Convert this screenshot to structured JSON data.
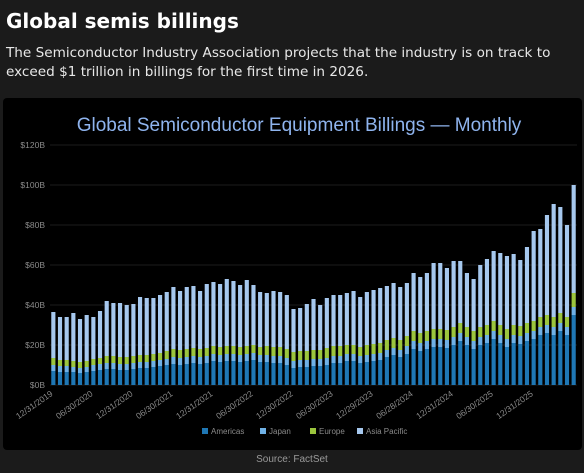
{
  "page": {
    "headline": "Global semis billings",
    "subtitle": "The Semiconductor Industry Association projects that the industry is on track to exceed $1 trillion in billings for the first time in 2026.",
    "source": "Source: FactSet"
  },
  "colors": {
    "background": "#1b1b1b",
    "panel": "#000000",
    "Americas": "#1f77b4",
    "Japan": "#6fb1e6",
    "Europe": "#9bc53d",
    "Asia Pacific": "#a6c8ee",
    "title": "#8fb4ee",
    "grid": "#3a3a3a",
    "axis_text": "#8a8a8a"
  },
  "chart_data": {
    "type": "bar",
    "stacked": true,
    "title": "Global Semiconductor Equipment Billings — Monthly",
    "xlabel": "",
    "ylabel": "",
    "ylim": [
      0,
      120
    ],
    "yticks": [
      0,
      20,
      40,
      60,
      80,
      100,
      120
    ],
    "ytick_labels": [
      "$0B",
      "$20B",
      "$40B",
      "$60B",
      "$80B",
      "$100B",
      "$120B"
    ],
    "xtick_labels": [
      "12/31/2019",
      "06/30/2020",
      "12/31/2020",
      "06/30/2021",
      "12/31/2021",
      "06/30/2022",
      "12/30/2022",
      "06/30/2023",
      "12/29/2023",
      "06/28/2024",
      "12/31/2024",
      "06/30/2025",
      "12/31/2025"
    ],
    "xtick_bar_index": [
      0,
      6,
      12,
      18,
      24,
      30,
      36,
      42,
      48,
      54,
      60,
      66,
      72
    ],
    "grid": true,
    "legend_position": "bottom",
    "value_unit": "$B",
    "series": [
      {
        "name": "Americas",
        "values": [
          7,
          6.5,
          6.5,
          6.5,
          6,
          6.5,
          7,
          7.5,
          8,
          8,
          7.5,
          7.5,
          8,
          8.5,
          8.5,
          9,
          9.5,
          10,
          10.5,
          10,
          10.5,
          11,
          10.5,
          11,
          12,
          11.5,
          12,
          12,
          11.5,
          12,
          12.5,
          11.5,
          11.5,
          11,
          11,
          10,
          8.5,
          9,
          9,
          9.5,
          9.5,
          10,
          11,
          11,
          12,
          12,
          11,
          11.5,
          12,
          12.5,
          14,
          15,
          14,
          15.5,
          18,
          17,
          18,
          19,
          19,
          18.5,
          20,
          22,
          20,
          18,
          20,
          21,
          23,
          21,
          19,
          21,
          20.5,
          22,
          23,
          25,
          26,
          25,
          27,
          25,
          35
        ]
      },
      {
        "name": "Japan",
        "values": [
          3,
          3,
          3,
          2.5,
          2.5,
          2.5,
          3,
          3,
          3,
          3,
          3,
          3,
          3,
          3,
          3,
          3,
          3,
          3,
          3.5,
          3.5,
          3.5,
          3.5,
          3.5,
          3.5,
          3.5,
          3.5,
          3.5,
          3.5,
          3.5,
          3.5,
          3.5,
          3.5,
          3.5,
          3.5,
          3.5,
          3.5,
          3.5,
          3.5,
          3.5,
          3.5,
          3.5,
          3.5,
          3.5,
          3.5,
          3.5,
          3.5,
          3.5,
          3.5,
          3.5,
          3.5,
          3.5,
          3.5,
          3.5,
          4,
          4,
          4,
          4,
          4,
          4,
          4,
          4,
          4,
          4,
          4,
          4,
          4,
          4,
          4,
          4,
          4,
          4,
          4,
          4,
          4,
          4,
          4,
          4,
          4,
          4
        ]
      },
      {
        "name": "Europe",
        "values": [
          3.5,
          3,
          3,
          3,
          3,
          3,
          3,
          3,
          3.5,
          3.5,
          3.5,
          3.5,
          3.5,
          3.5,
          3.5,
          3.5,
          3.5,
          4,
          4,
          4,
          4,
          4,
          4,
          4,
          4,
          4,
          4,
          4,
          4,
          4,
          4,
          4,
          4.5,
          4.5,
          4.5,
          4.5,
          4.5,
          4.5,
          4.5,
          4.5,
          4.5,
          5,
          5,
          5,
          4.5,
          4.5,
          4.5,
          5,
          5,
          5,
          5,
          5,
          5,
          5,
          5,
          5,
          5,
          5,
          5,
          5,
          5,
          5,
          5,
          5,
          5,
          5,
          5,
          5,
          5,
          5,
          5,
          5,
          5,
          5,
          5,
          5,
          5,
          5,
          7
        ]
      },
      {
        "name": "Asia Pacific",
        "values": [
          23,
          21.5,
          21.5,
          24,
          21.5,
          23,
          21,
          23.5,
          27.5,
          26.5,
          27,
          26,
          26,
          29,
          28.5,
          28,
          29,
          29.5,
          31,
          29.5,
          31,
          31,
          29,
          32,
          32,
          31.5,
          33.5,
          32.5,
          31,
          33,
          30,
          27.5,
          26.5,
          28,
          27.5,
          27,
          21.5,
          21.5,
          23.5,
          25.5,
          22.5,
          25,
          25.5,
          25.5,
          26,
          27,
          25,
          26.5,
          27,
          27.5,
          27,
          27.5,
          26.5,
          26.5,
          29,
          28,
          29,
          33,
          33,
          31,
          33,
          31,
          27,
          26,
          31,
          33,
          35,
          36,
          36.5,
          35.5,
          33,
          38,
          45,
          44,
          50,
          56.5,
          53,
          46,
          54
        ]
      }
    ],
    "legend": [
      "Americas",
      "Japan",
      "Europe",
      "Asia Pacific"
    ]
  }
}
